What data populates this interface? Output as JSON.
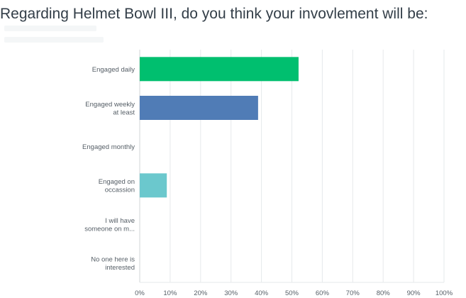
{
  "title": "Regarding Helmet Bowl III, do you think your invovlement will be:",
  "chart_data": {
    "type": "bar",
    "orientation": "horizontal",
    "categories": [
      [
        "Engaged daily"
      ],
      [
        "Engaged weekly",
        "at least"
      ],
      [
        "Engaged monthly"
      ],
      [
        "Engaged on",
        "occassion"
      ],
      [
        "I will have",
        "someone on m..."
      ],
      [
        "No one here is",
        "interested"
      ]
    ],
    "values": [
      52.2,
      38.9,
      0,
      8.9,
      0,
      0
    ],
    "bar_colors": [
      "#00bf6f",
      "#507cb6",
      "#f9be00",
      "#6bc8cd",
      "#ff8b4f",
      "#7d5ba6"
    ],
    "xlim": [
      0,
      100
    ],
    "x_ticks": [
      "0%",
      "10%",
      "20%",
      "30%",
      "40%",
      "50%",
      "60%",
      "70%",
      "80%",
      "90%",
      "100%"
    ],
    "grid": true,
    "gridline_color": "#e6e9eb"
  }
}
